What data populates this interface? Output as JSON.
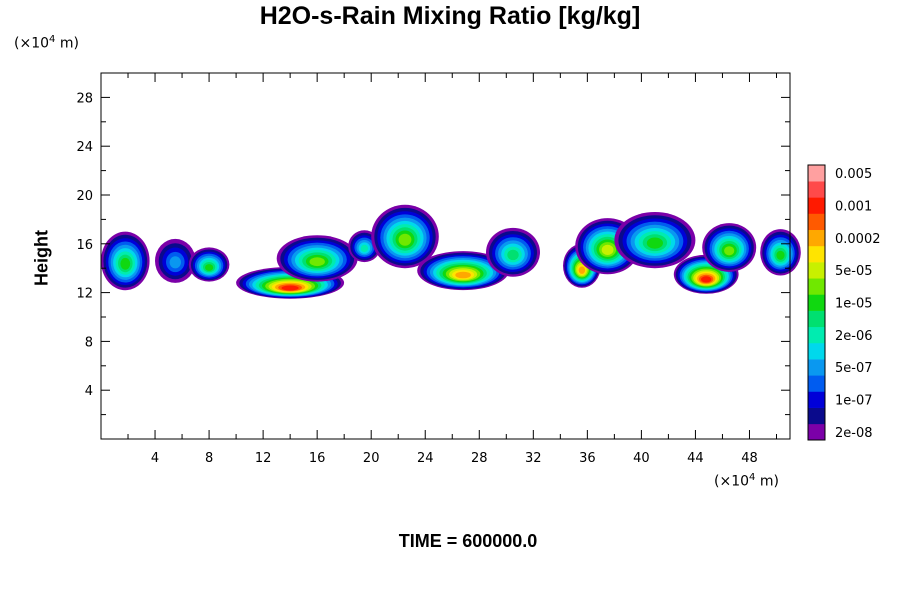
{
  "chart_data": {
    "type": "heatmap",
    "title": "H2O-s-Rain Mixing Ratio [kg/kg]",
    "xlabel": "",
    "ylabel": "Height",
    "x_unit_prefix": "(×10",
    "x_unit_exp": "4",
    "x_unit_suffix": " m)",
    "y_unit_prefix": "(×10",
    "y_unit_exp": "4",
    "y_unit_suffix": " m)",
    "xlim": [
      0,
      51
    ],
    "ylim": [
      0,
      30
    ],
    "x_ticks": [
      4,
      8,
      12,
      16,
      20,
      24,
      28,
      32,
      36,
      40,
      44,
      48
    ],
    "y_ticks": [
      4,
      8,
      12,
      16,
      20,
      24,
      28
    ],
    "time_label": "TIME = 600000.0",
    "colorbar": {
      "colors": [
        "#7b00a8",
        "#0a0a8c",
        "#0000d8",
        "#005cf0",
        "#0a98f0",
        "#00d8ec",
        "#00ecb0",
        "#00e070",
        "#10d810",
        "#70e800",
        "#c8f000",
        "#ffe400",
        "#ffa800",
        "#ff5a00",
        "#ff1a00",
        "#ff4a4a",
        "#ffa0a0"
      ],
      "labels": [
        "2e-08",
        "1e-07",
        "5e-07",
        "2e-06",
        "1e-05",
        "5e-05",
        "0.0002",
        "0.001",
        "0.005"
      ]
    },
    "features": [
      {
        "x": 1.8,
        "z": 14.6,
        "w": 1.8,
        "h": 2.4,
        "peak": 8
      },
      {
        "x": 5.5,
        "z": 14.6,
        "w": 1.5,
        "h": 1.8,
        "peak": 4
      },
      {
        "x": 8.0,
        "z": 14.3,
        "w": 1.5,
        "h": 1.4,
        "peak": 8
      },
      {
        "x": 14.0,
        "z": 12.8,
        "w": 4.0,
        "h": 1.3,
        "peak": 14
      },
      {
        "x": 16.0,
        "z": 14.8,
        "w": 3.0,
        "h": 1.9,
        "peak": 9
      },
      {
        "x": 19.5,
        "z": 15.8,
        "w": 1.2,
        "h": 1.3,
        "peak": 6
      },
      {
        "x": 22.5,
        "z": 16.6,
        "w": 2.5,
        "h": 2.6,
        "peak": 9
      },
      {
        "x": 26.8,
        "z": 13.8,
        "w": 3.4,
        "h": 1.6,
        "peak": 12
      },
      {
        "x": 30.5,
        "z": 15.3,
        "w": 2.0,
        "h": 2.0,
        "peak": 7
      },
      {
        "x": 35.6,
        "z": 14.2,
        "w": 1.4,
        "h": 1.8,
        "peak": 12
      },
      {
        "x": 37.5,
        "z": 15.8,
        "w": 2.4,
        "h": 2.3,
        "peak": 10
      },
      {
        "x": 41.0,
        "z": 16.3,
        "w": 3.0,
        "h": 2.3,
        "peak": 8
      },
      {
        "x": 44.8,
        "z": 13.5,
        "w": 2.4,
        "h": 1.6,
        "peak": 14
      },
      {
        "x": 46.5,
        "z": 15.7,
        "w": 2.0,
        "h": 2.0,
        "peak": 9
      },
      {
        "x": 50.3,
        "z": 15.3,
        "w": 1.5,
        "h": 1.9,
        "peak": 8
      }
    ]
  }
}
